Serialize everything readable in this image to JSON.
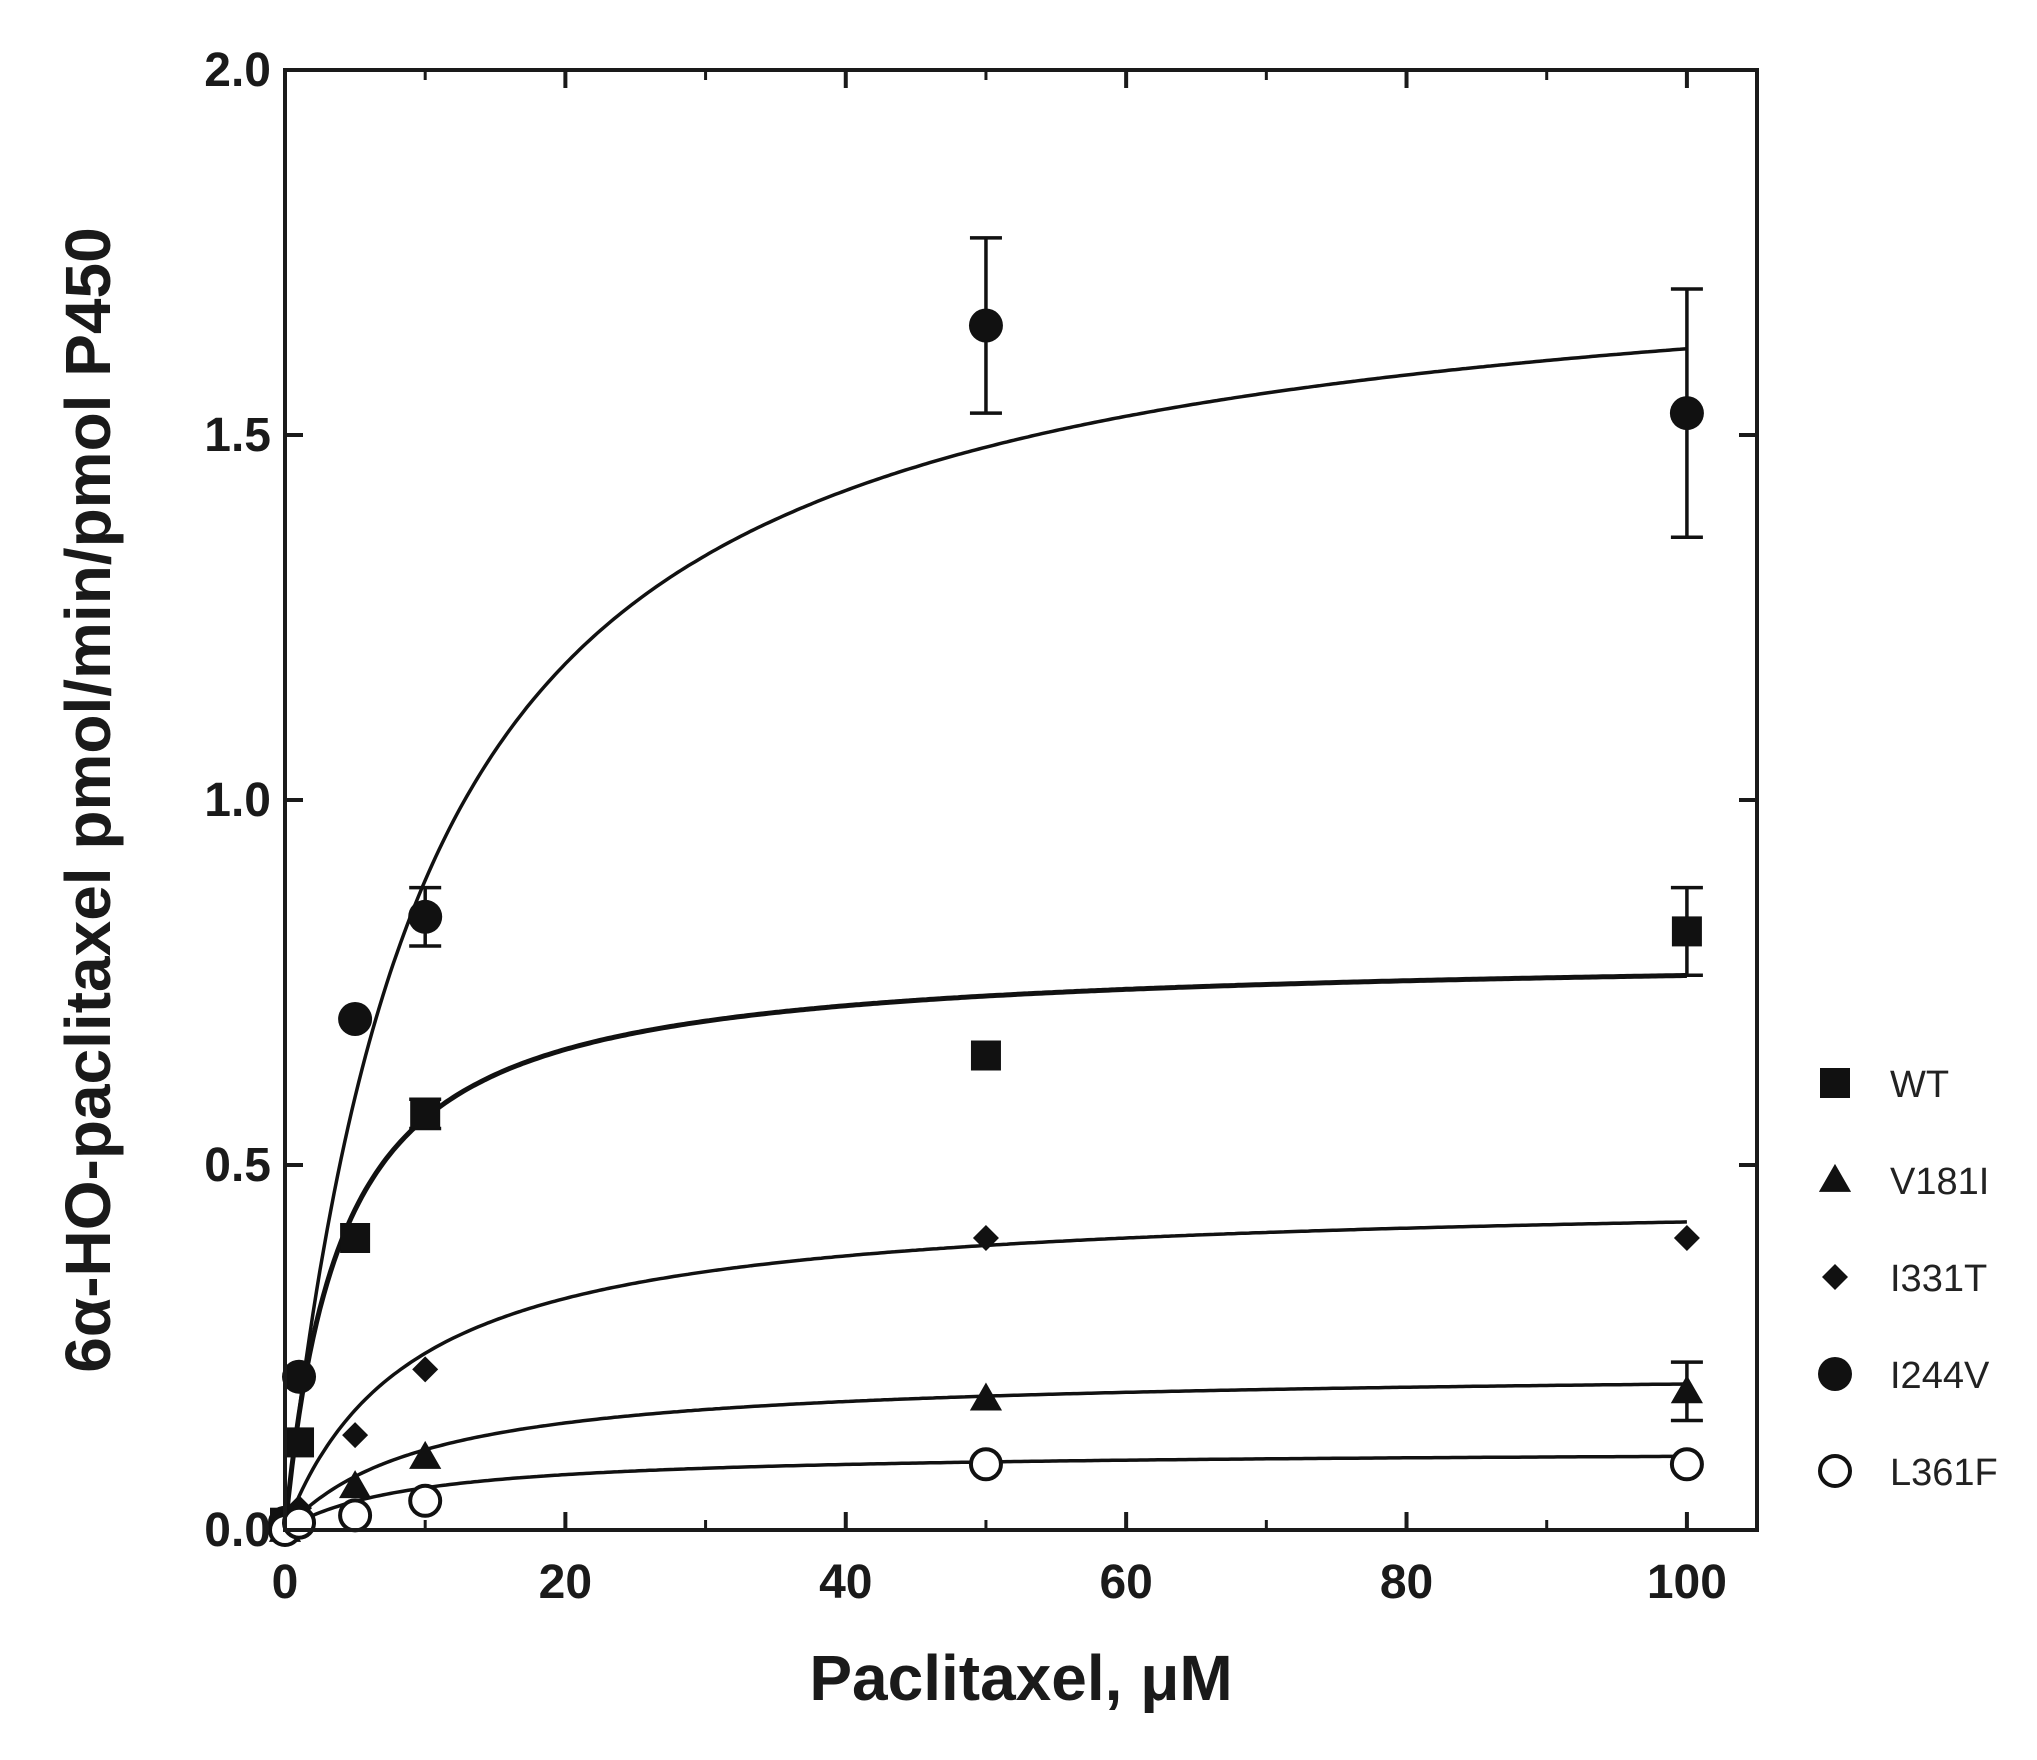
{
  "chart_data": {
    "type": "scatter",
    "title": "",
    "xlabel": "Paclitaxel, μM",
    "ylabel": "6α-HO-paclitaxel pmol/min/pmol P450",
    "xlim": [
      0,
      105
    ],
    "ylim": [
      0,
      2.0
    ],
    "xticks": [
      0,
      20,
      40,
      60,
      80,
      100
    ],
    "xtick_labels": [
      "0",
      "20",
      "40",
      "60",
      "80",
      "100"
    ],
    "yticks": [
      0,
      0.5,
      1.0,
      1.5,
      2.0
    ],
    "ytick_labels": [
      "0.0",
      "0.5",
      "1.0",
      "1.5",
      "2.0"
    ],
    "grid": false,
    "legend_position": "right",
    "series": [
      {
        "name": "WT",
        "marker": "square",
        "points": [
          {
            "x": 0,
            "y": 0.01
          },
          {
            "x": 1,
            "y": 0.12
          },
          {
            "x": 5,
            "y": 0.4
          },
          {
            "x": 10,
            "y": 0.57,
            "err": 0.02
          },
          {
            "x": 50,
            "y": 0.65
          },
          {
            "x": 100,
            "y": 0.82,
            "err": 0.06
          }
        ],
        "fit": {
          "vmax": 0.79,
          "km": 4.0
        }
      },
      {
        "name": "V181I",
        "marker": "triangle",
        "points": [
          {
            "x": 0,
            "y": 0.0
          },
          {
            "x": 1,
            "y": 0.02
          },
          {
            "x": 5,
            "y": 0.06
          },
          {
            "x": 10,
            "y": 0.1
          },
          {
            "x": 50,
            "y": 0.18
          },
          {
            "x": 100,
            "y": 0.19,
            "err": 0.04
          }
        ],
        "fit": {
          "vmax": 0.22,
          "km": 10.0
        }
      },
      {
        "name": "I331T",
        "marker": "diamond",
        "points": [
          {
            "x": 0,
            "y": 0.0
          },
          {
            "x": 1,
            "y": 0.03
          },
          {
            "x": 5,
            "y": 0.13
          },
          {
            "x": 10,
            "y": 0.22
          },
          {
            "x": 50,
            "y": 0.4
          },
          {
            "x": 100,
            "y": 0.4
          }
        ],
        "fit": {
          "vmax": 0.46,
          "km": 9.0
        }
      },
      {
        "name": "I244V",
        "marker": "circle",
        "points": [
          {
            "x": 0,
            "y": 0.01
          },
          {
            "x": 1,
            "y": 0.21
          },
          {
            "x": 5,
            "y": 0.7
          },
          {
            "x": 10,
            "y": 0.84,
            "err": 0.04
          },
          {
            "x": 50,
            "y": 1.65,
            "err": 0.12
          },
          {
            "x": 100,
            "y": 1.53,
            "err": 0.17
          }
        ],
        "fit": {
          "vmax": 1.78,
          "km": 10.0
        }
      },
      {
        "name": "L361F",
        "marker": "open-circle",
        "points": [
          {
            "x": 0,
            "y": 0.0
          },
          {
            "x": 1,
            "y": 0.01
          },
          {
            "x": 5,
            "y": 0.02
          },
          {
            "x": 10,
            "y": 0.04
          },
          {
            "x": 50,
            "y": 0.09
          },
          {
            "x": 100,
            "y": 0.09
          }
        ],
        "fit": {
          "vmax": 0.11,
          "km": 9.0
        }
      }
    ]
  }
}
